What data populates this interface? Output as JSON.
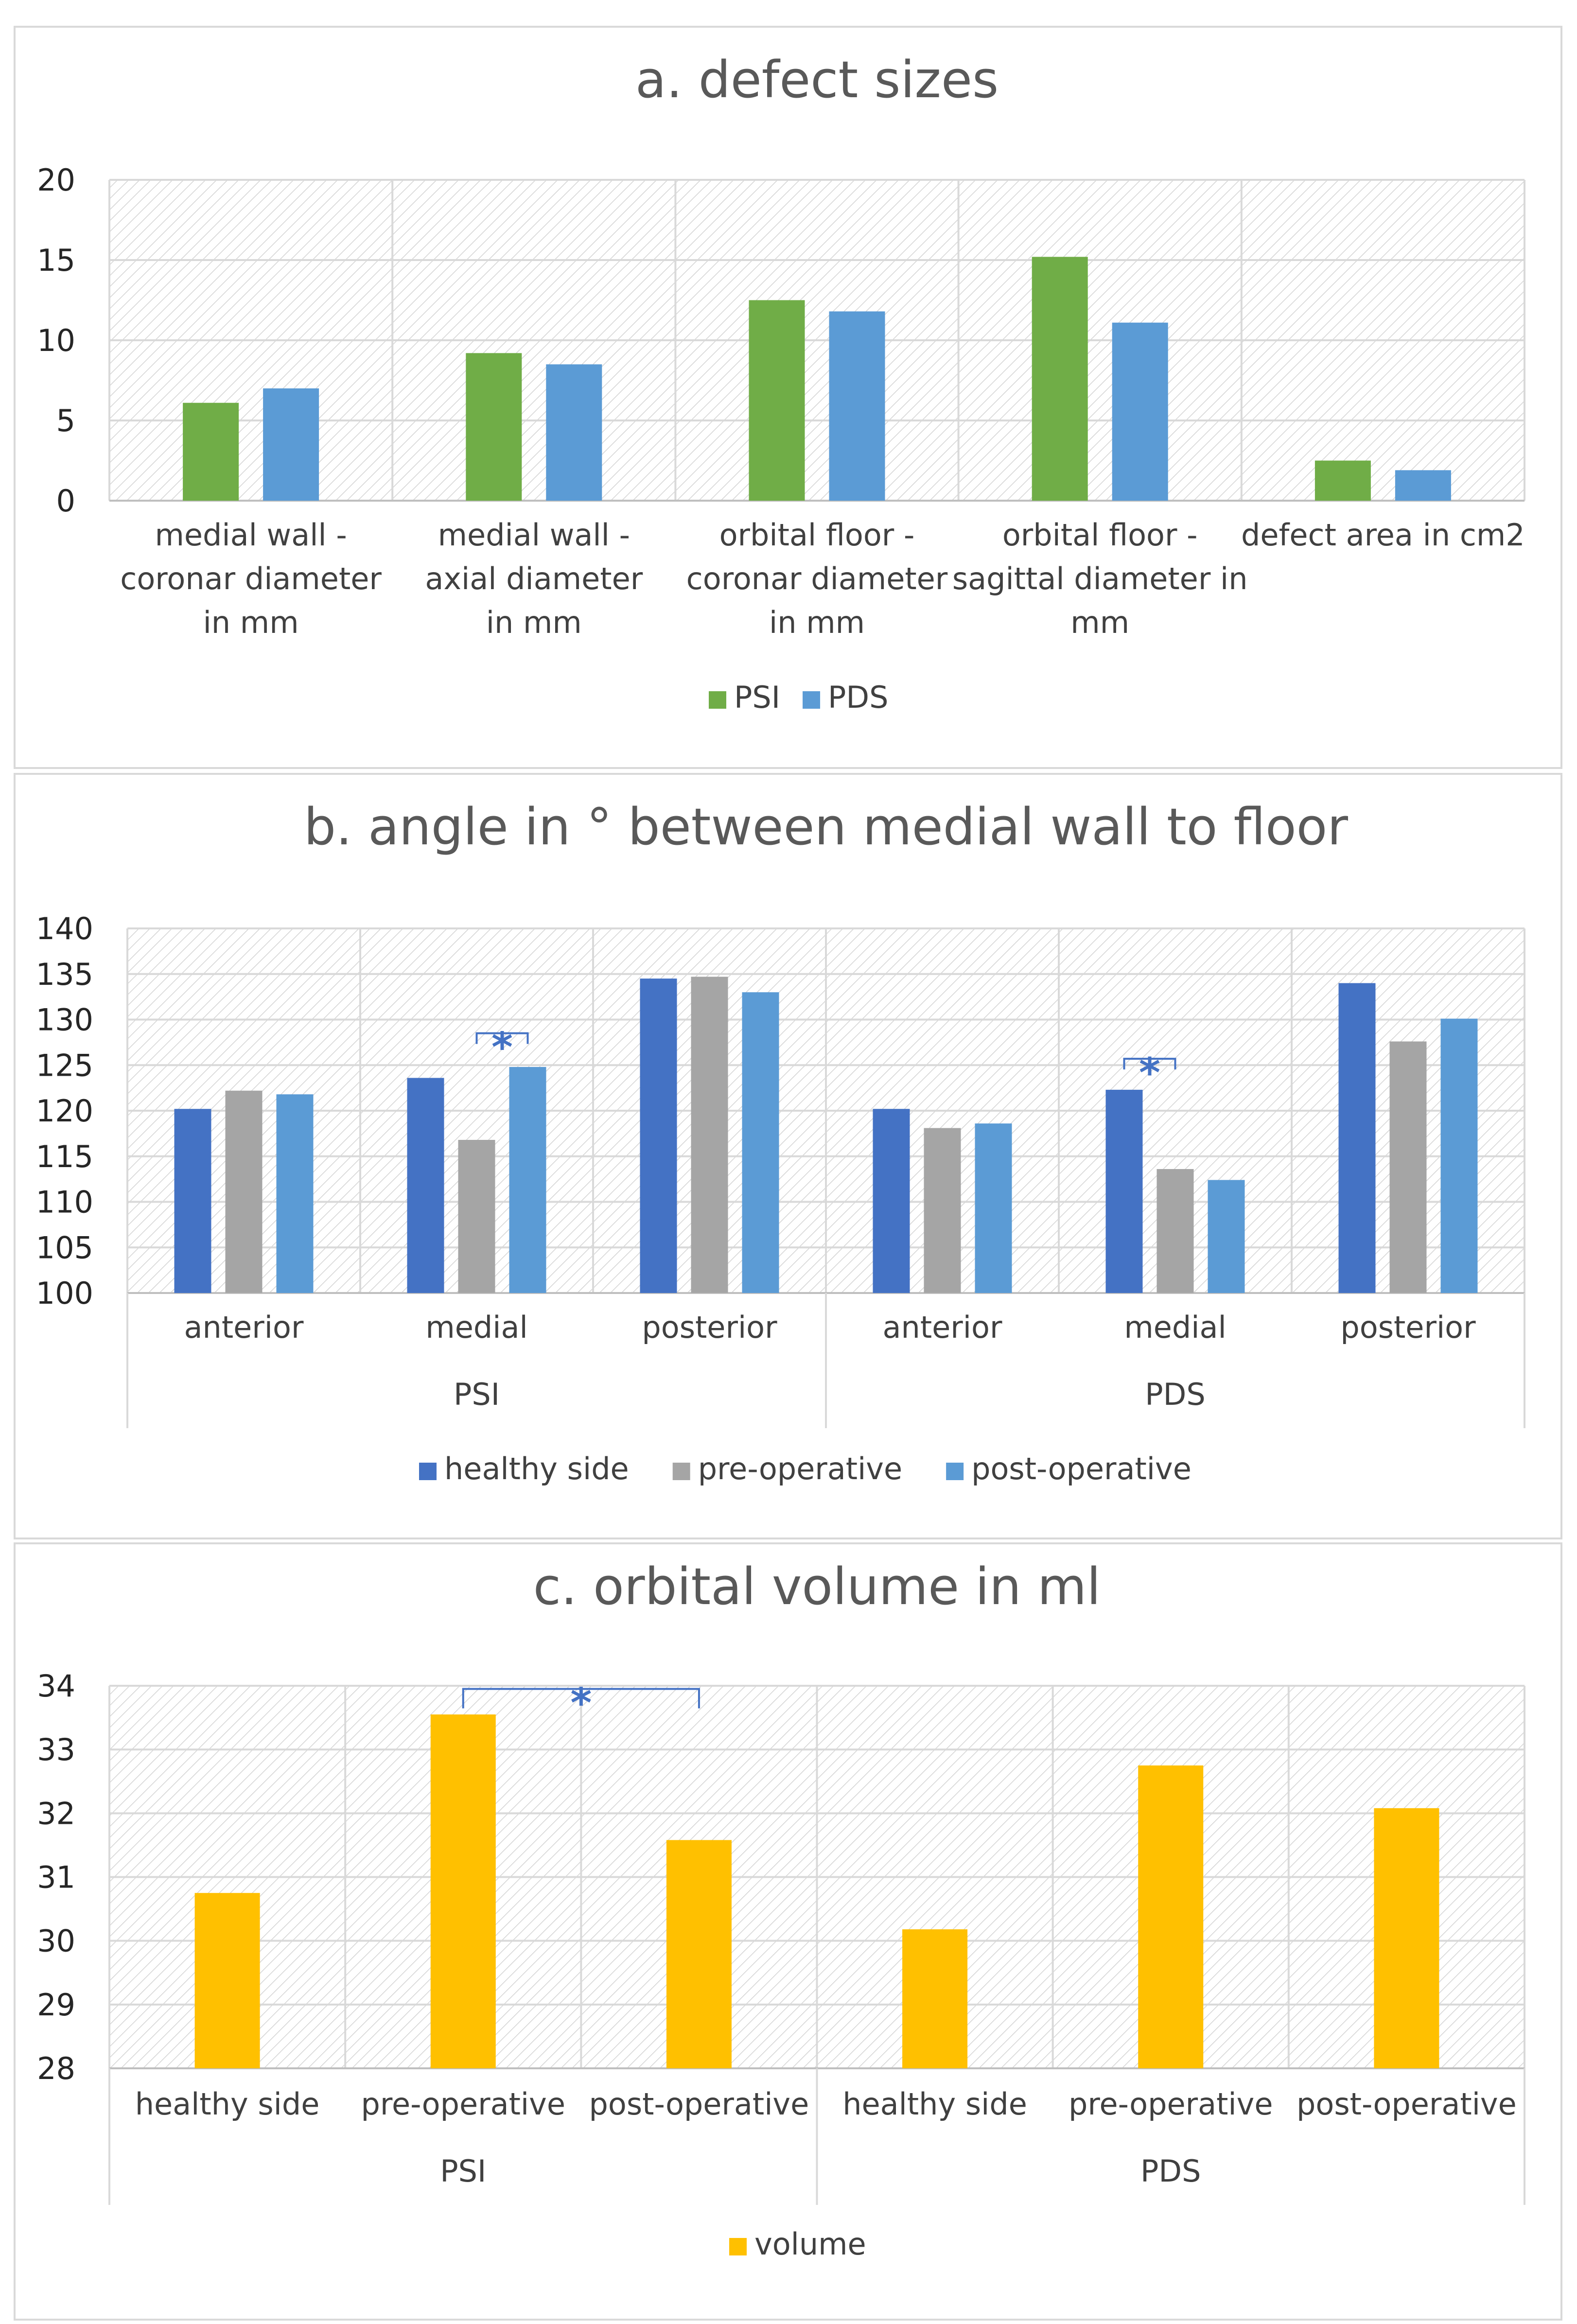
{
  "chart_data": [
    {
      "type": "bar",
      "title": "a. defect sizes",
      "categories": [
        [
          "medial wall -",
          "coronar diameter",
          "in mm"
        ],
        [
          "medial wall -",
          "axial diameter",
          "in mm"
        ],
        [
          "orbital floor -",
          "coronar diameter",
          "in mm"
        ],
        [
          "orbital floor -",
          "sagittal diameter in",
          "mm"
        ],
        [
          "defect area in cm2"
        ]
      ],
      "series": [
        {
          "name": "PSI",
          "color": "#70AD47",
          "values": [
            6.1,
            9.2,
            12.5,
            15.2,
            2.5
          ]
        },
        {
          "name": "PDS",
          "color": "#5B9BD5",
          "values": [
            7.0,
            8.5,
            11.8,
            11.1,
            1.9
          ]
        }
      ],
      "ylim": [
        0,
        20
      ],
      "yticks": [
        0,
        5,
        10,
        15,
        20
      ],
      "legend": "bottom"
    },
    {
      "type": "bar",
      "title": "b. angle in ° between medial wall to floor",
      "groups": [
        "PSI",
        "PDS"
      ],
      "categories": [
        "anterior",
        "medial",
        "posterior",
        "anterior",
        "medial",
        "posterior"
      ],
      "series": [
        {
          "name": "healthy side",
          "color": "#4472C4",
          "values": [
            120.2,
            123.6,
            134.5,
            120.2,
            122.3,
            134.0
          ]
        },
        {
          "name": "pre-operative",
          "color": "#A5A5A5",
          "values": [
            122.2,
            116.8,
            134.7,
            118.1,
            113.6,
            127.6
          ]
        },
        {
          "name": "post-operative",
          "color": "#5B9BD5",
          "values": [
            121.8,
            124.8,
            133.0,
            118.6,
            112.4,
            130.1
          ]
        }
      ],
      "ylim": [
        100,
        140
      ],
      "yticks": [
        100,
        105,
        110,
        115,
        120,
        125,
        130,
        135,
        140
      ],
      "annotations": [
        {
          "text": "*",
          "category_index": 1,
          "from_series": 1,
          "to_series": 2,
          "level": 128.5
        },
        {
          "text": "*",
          "category_index": 4,
          "from_series": 0,
          "to_series": 1,
          "level": 125.7
        }
      ],
      "legend": "bottom"
    },
    {
      "type": "bar",
      "title": "c. orbital volume in ml",
      "groups": [
        "PSI",
        "PDS"
      ],
      "categories": [
        "healthy side",
        "pre-operative",
        "post-operative",
        "healthy side",
        "pre-operative",
        "post-operative"
      ],
      "series": [
        {
          "name": "volume",
          "color": "#FFC000",
          "values": [
            30.75,
            33.55,
            31.58,
            30.18,
            32.75,
            32.08
          ]
        }
      ],
      "ylim": [
        28,
        34
      ],
      "yticks": [
        28,
        29,
        30,
        31,
        32,
        33,
        34
      ],
      "annotations": [
        {
          "text": "*",
          "from_category": 1,
          "to_category": 2,
          "level": 33.95
        }
      ],
      "legend": "bottom"
    }
  ]
}
